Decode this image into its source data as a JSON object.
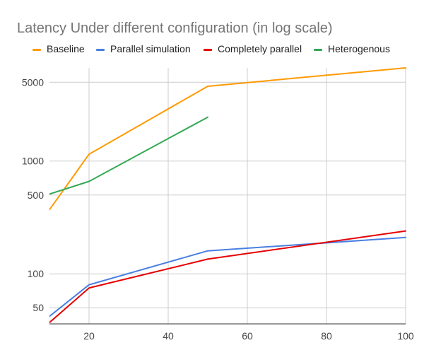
{
  "chart_data": {
    "type": "line",
    "title": "Latency Under different configuration (in log scale)",
    "xlabel": "",
    "ylabel": "",
    "y_scale": "log",
    "xlim": [
      10,
      100
    ],
    "ylim": [
      36,
      6700
    ],
    "x_ticks": [
      20,
      40,
      60,
      80,
      100
    ],
    "y_ticks": [
      50,
      100,
      500,
      1000,
      5000
    ],
    "grid": true,
    "legend_position": "top",
    "series": [
      {
        "name": "Baseline",
        "color": "#FF9900",
        "points": [
          [
            10,
            370
          ],
          [
            20,
            1150
          ],
          [
            50,
            4600
          ],
          [
            100,
            6700
          ]
        ]
      },
      {
        "name": "Parallel simulation",
        "color": "#4A7FE2",
        "points": [
          [
            10,
            42
          ],
          [
            20,
            80
          ],
          [
            50,
            160
          ],
          [
            100,
            210
          ]
        ]
      },
      {
        "name": "Completely parallel",
        "color": "#E50000",
        "points": [
          [
            10,
            37
          ],
          [
            20,
            75
          ],
          [
            50,
            135
          ],
          [
            100,
            240
          ]
        ]
      },
      {
        "name": "Heterogenous",
        "color": "#33A853",
        "points": [
          [
            10,
            510
          ],
          [
            20,
            660
          ],
          [
            50,
            2450
          ]
        ]
      }
    ]
  }
}
